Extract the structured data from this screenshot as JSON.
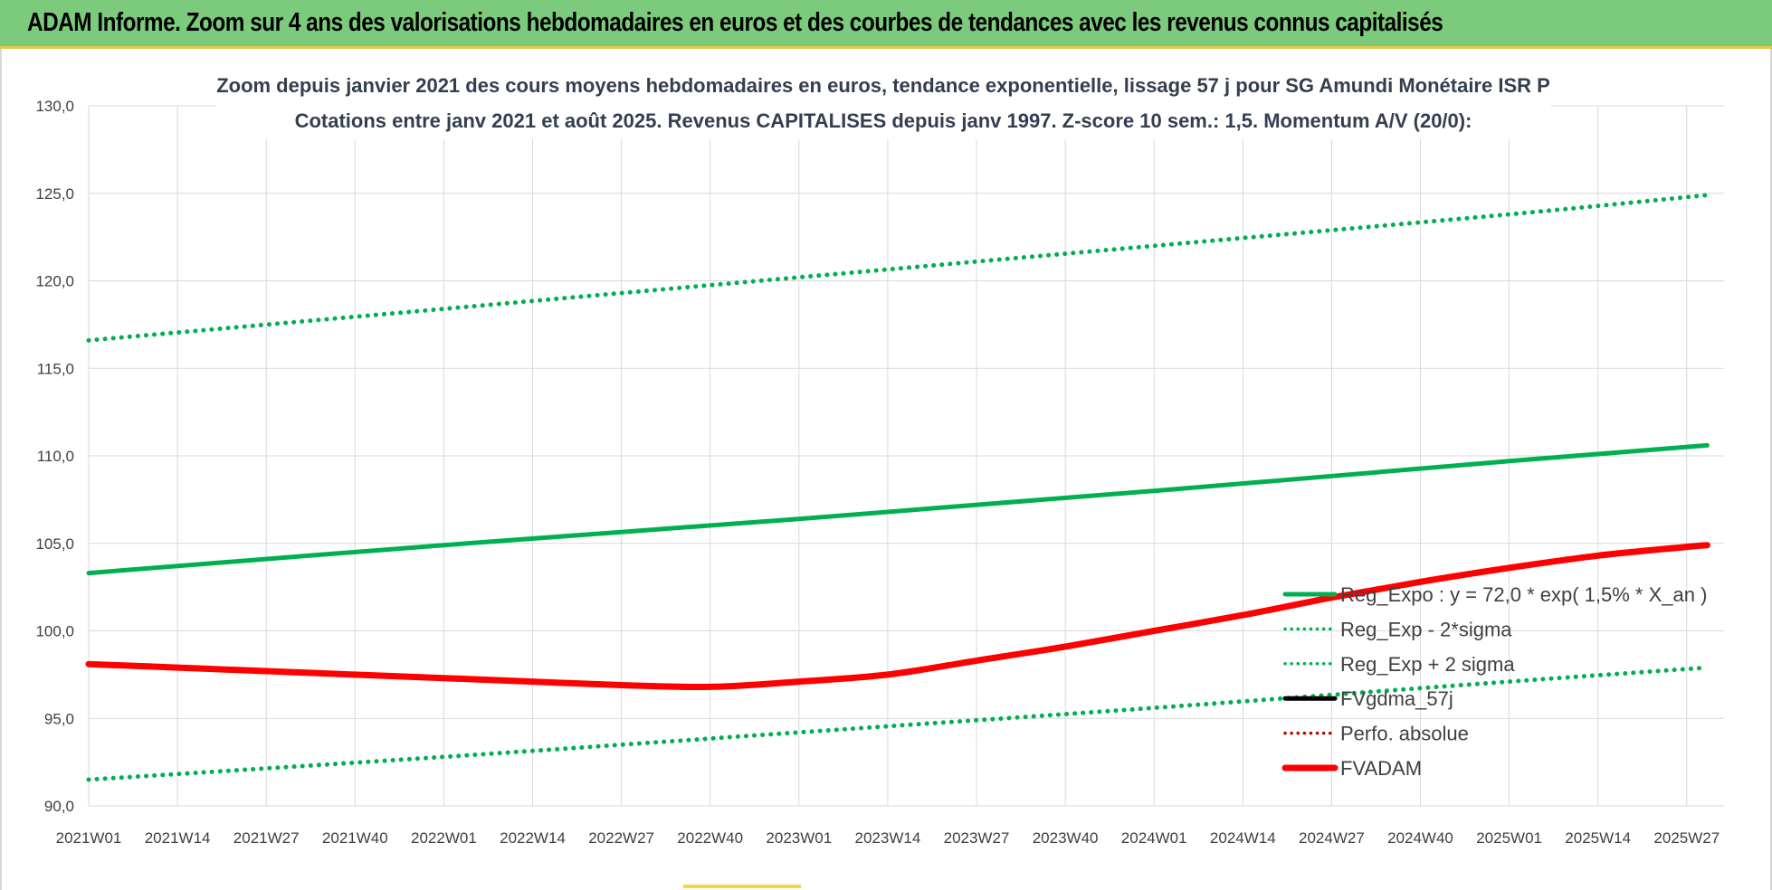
{
  "banner": {
    "title": "ADAM Informe. Zoom sur 4 ans des valorisations hebdomadaires en euros et des courbes de tendances avec les revenus connus capitalisés"
  },
  "chart_data": {
    "type": "line",
    "title": "Zoom depuis janvier 2021 des cours moyens hebdomadaires en euros, tendance exponentielle, lissage 57 j pour SG Amundi Monétaire ISR P",
    "subtitle": "Cotations entre janv 2021 et août 2025. Revenus CAPITALISES depuis janv 1997. Z-score 10 sem.: 1,5. Momentum A/V (20/0):",
    "xlabel": "",
    "ylabel": "",
    "ylim": [
      90,
      130
    ],
    "y_ticks": [
      "90,0",
      "95,0",
      "100,0",
      "105,0",
      "110,0",
      "115,0",
      "120,0",
      "125,0",
      "130,0"
    ],
    "x_ticks": [
      "2021W01",
      "2021W14",
      "2021W27",
      "2021W40",
      "2022W01",
      "2022W14",
      "2022W27",
      "2022W40",
      "2023W01",
      "2023W14",
      "2023W27",
      "2023W40",
      "2024W01",
      "2024W14",
      "2024W27",
      "2024W40",
      "2025W01",
      "2025W14",
      "2025W27"
    ],
    "grid": true,
    "legend_position": "right-inside",
    "series": [
      {
        "name": "Reg_Expo : y = 72,0 * exp( 1,5% *  X_an )",
        "color": "#00b050",
        "style": "solid",
        "points": [
          [
            "2021W01",
            103.3
          ],
          [
            "2022W01",
            104.9
          ],
          [
            "2023W01",
            106.4
          ],
          [
            "2024W01",
            108.0
          ],
          [
            "2025W01",
            109.7
          ],
          [
            "2025W30",
            110.6
          ]
        ]
      },
      {
        "name": "Reg_Exp - 2*sigma",
        "color": "#00b050",
        "style": "dotted",
        "points": [
          [
            "2021W01",
            91.5
          ],
          [
            "2022W01",
            92.8
          ],
          [
            "2023W01",
            94.2
          ],
          [
            "2024W01",
            95.6
          ],
          [
            "2025W01",
            97.1
          ],
          [
            "2025W30",
            97.9
          ]
        ]
      },
      {
        "name": "Reg_Exp + 2 sigma",
        "color": "#00b050",
        "style": "dotted",
        "points": [
          [
            "2021W01",
            116.6
          ],
          [
            "2022W01",
            118.4
          ],
          [
            "2023W01",
            120.2
          ],
          [
            "2024W01",
            122.0
          ],
          [
            "2025W01",
            123.8
          ],
          [
            "2025W30",
            124.9
          ]
        ]
      },
      {
        "name": "FVgdma_57j",
        "color": "#000000",
        "style": "solid",
        "points": []
      },
      {
        "name": "Perfo. absolue",
        "color": "#c00000",
        "style": "dotted",
        "points": []
      },
      {
        "name": "FVADAM",
        "color": "#ff0000",
        "style": "solid-thick",
        "points": [
          [
            "2021W01",
            98.1
          ],
          [
            "2021W14",
            97.9
          ],
          [
            "2021W27",
            97.7
          ],
          [
            "2021W40",
            97.5
          ],
          [
            "2022W01",
            97.3
          ],
          [
            "2022W14",
            97.1
          ],
          [
            "2022W27",
            96.9
          ],
          [
            "2022W40",
            96.8
          ],
          [
            "2023W01",
            97.1
          ],
          [
            "2023W14",
            97.5
          ],
          [
            "2023W27",
            98.3
          ],
          [
            "2023W40",
            99.1
          ],
          [
            "2024W01",
            100.0
          ],
          [
            "2024W14",
            100.9
          ],
          [
            "2024W27",
            101.9
          ],
          [
            "2024W40",
            102.8
          ],
          [
            "2025W01",
            103.6
          ],
          [
            "2025W14",
            104.3
          ],
          [
            "2025W27",
            104.8
          ],
          [
            "2025W30",
            104.9
          ]
        ]
      }
    ]
  }
}
